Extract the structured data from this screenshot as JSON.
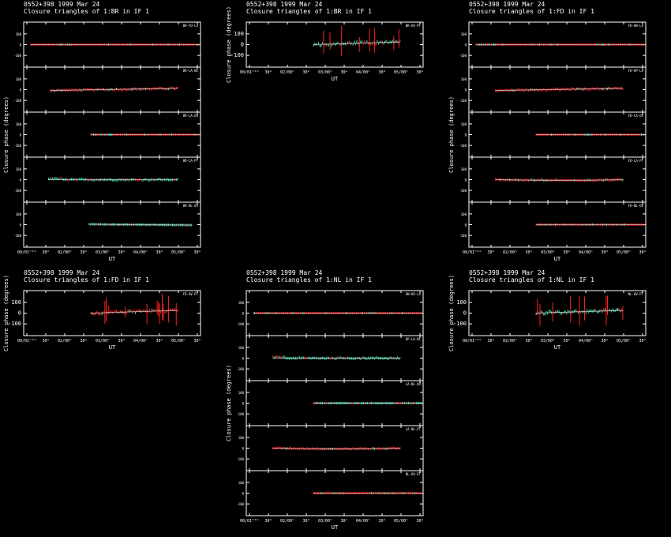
{
  "chart_data": [
    {
      "type": "scatter",
      "header": "0552+398  1999 Mar 24",
      "title": "Closure triangles of 1:BR in IF 1",
      "xlabel": "UT",
      "ylabel": "Closure phase  (degrees)",
      "ticks": [
        "00/01ʰ°ᵐ",
        "30ᵐ",
        "02/00ʰ",
        "30ᵐ",
        "03/00ʰ",
        "30ᵐ",
        "04/00ʰ",
        "30ᵐ",
        "05/00ʰ",
        "30ᵐ"
      ],
      "ytick_labels": [
        "100",
        "0",
        "-100"
      ],
      "panels": [
        {
          "label": "BR-FD-LA",
          "start": 0.04,
          "end": 0.99,
          "kind": "flat",
          "color": "red",
          "curve": 0
        },
        {
          "label": "BR-LA-NL",
          "start": 0.15,
          "end": 0.87,
          "kind": "rise",
          "color": "red",
          "curve": -20
        },
        {
          "label": "BR-LA-OV",
          "start": 0.38,
          "end": 0.99,
          "kind": "flat",
          "color": "red",
          "curve": 0
        },
        {
          "label": "BR-LA-PT",
          "start": 0.14,
          "end": 0.87,
          "kind": "noisy",
          "color": "cyan",
          "curve": 0
        },
        {
          "label": "BR-NL-OV",
          "start": 0.37,
          "end": 0.95,
          "kind": "fall",
          "color": "cyan",
          "curve": 10
        }
      ]
    },
    {
      "type": "scatter",
      "header": "0552+398  1999 Mar 24",
      "title": "Closure triangles of 1:BR in IF 1",
      "xlabel": "UT",
      "ylabel": "Closure phase  (degrees)",
      "ticks": [
        "00/01ʰ°ᵐ",
        "30ᵐ",
        "02/00ʰ",
        "30ᵐ",
        "03/00ʰ",
        "30ᵐ",
        "04/00ʰ",
        "30ᵐ",
        "05/00ʰ",
        "30ᵐ"
      ],
      "ytick_labels": [
        "100",
        "0",
        "-100"
      ],
      "panels": [
        {
          "label": "BR-OV-PT",
          "start": 0.38,
          "end": 0.87,
          "kind": "spiky",
          "color": "cyan",
          "curve": 0
        }
      ]
    },
    {
      "type": "scatter",
      "header": "0552+398  1999 Mar 24",
      "title": "Closure triangles of 1:FD in IF 1",
      "xlabel": "UT",
      "ylabel": "Closure phase  (degrees)",
      "ticks": [
        "00/01ʰ°ᵐ",
        "30ᵐ",
        "02/00ʰ",
        "30ᵐ",
        "03/00ʰ",
        "30ᵐ",
        "04/00ʰ",
        "30ᵐ",
        "05/00ʰ",
        "30ᵐ"
      ],
      "ytick_labels": [
        "100",
        "0",
        "-100"
      ],
      "panels": [
        {
          "label": "FD-HN-LA",
          "start": 0.04,
          "end": 0.99,
          "kind": "flat",
          "color": "red",
          "curve": 0
        },
        {
          "label": "FD-KP-LA",
          "start": 0.15,
          "end": 0.87,
          "kind": "rise",
          "color": "red",
          "curve": -20
        },
        {
          "label": "FD-LA-OV",
          "start": 0.38,
          "end": 0.99,
          "kind": "flat",
          "color": "red",
          "curve": 0
        },
        {
          "label": "FD-LA-PT",
          "start": 0.15,
          "end": 0.87,
          "kind": "dip",
          "color": "red",
          "curve": -10
        },
        {
          "label": "FD-NL-OV",
          "start": 0.38,
          "end": 0.99,
          "kind": "flat",
          "color": "red",
          "curve": 0
        }
      ]
    },
    {
      "type": "scatter",
      "header": "0552+398  1999 Mar 24",
      "title": "Closure triangles of 1:FD in IF 1",
      "xlabel": "UT",
      "ylabel": "Closure phase  (degrees)",
      "ticks": [
        "00/01ʰ°ᵐ",
        "30ᵐ",
        "02/00ʰ",
        "30ᵐ",
        "03/00ʰ",
        "30ᵐ",
        "04/00ʰ",
        "30ᵐ",
        "05/00ʰ",
        "30ᵐ"
      ],
      "ytick_labels": [
        "100",
        "0",
        "-100"
      ],
      "panels": [
        {
          "label": "FD-OV-PT",
          "start": 0.38,
          "end": 0.87,
          "kind": "spiky",
          "color": "red",
          "curve": 0
        }
      ]
    },
    {
      "type": "scatter",
      "header": "0552+398  1999 Mar 24",
      "title": "Closure triangles of 1:NL in IF 1",
      "xlabel": "UT",
      "ylabel": "Closure phase  (degrees)",
      "ticks": [
        "00/01ʰ°ᵐ",
        "30ᵐ",
        "02/00ʰ",
        "30ᵐ",
        "03/00ʰ",
        "30ᵐ",
        "04/00ʰ",
        "30ᵐ",
        "05/00ʰ",
        "30ᵐ"
      ],
      "ytick_labels": [
        "100",
        "0",
        "-100"
      ],
      "panels": [
        {
          "label": "HN-KP-LA",
          "start": 0.04,
          "end": 0.99,
          "kind": "flat",
          "color": "red",
          "curve": 0
        },
        {
          "label": "KP-LA-NL",
          "start": 0.15,
          "end": 0.87,
          "kind": "noisy",
          "color": "cyan",
          "curve": 0
        },
        {
          "label": "LA-NL-OV",
          "start": 0.38,
          "end": 0.99,
          "kind": "flat",
          "color": "cyan",
          "curve": 0
        },
        {
          "label": "LA-NL-PT",
          "start": 0.15,
          "end": 0.87,
          "kind": "dip",
          "color": "red",
          "curve": -10
        },
        {
          "label": "NL-OV-PT",
          "start": 0.38,
          "end": 0.99,
          "kind": "flat",
          "color": "red",
          "curve": 0
        }
      ]
    },
    {
      "type": "scatter",
      "header": "0552+398  1999 Mar 24",
      "title": "Closure triangles of 1:NL in IF 1",
      "xlabel": "UT",
      "ylabel": "Closure phase  (degrees)",
      "ticks": [
        "00/01ʰ°ᵐ",
        "30ᵐ",
        "02/00ʰ",
        "30ᵐ",
        "03/00ʰ",
        "30ᵐ",
        "04/00ʰ",
        "30ᵐ",
        "05/00ʰ",
        "30ᵐ"
      ],
      "ytick_labels": [
        "100",
        "0",
        "-100"
      ],
      "panels": [
        {
          "label": "NL-OV-PT",
          "start": 0.38,
          "end": 0.87,
          "kind": "spiky",
          "color": "cyan",
          "curve": 0
        }
      ]
    }
  ]
}
